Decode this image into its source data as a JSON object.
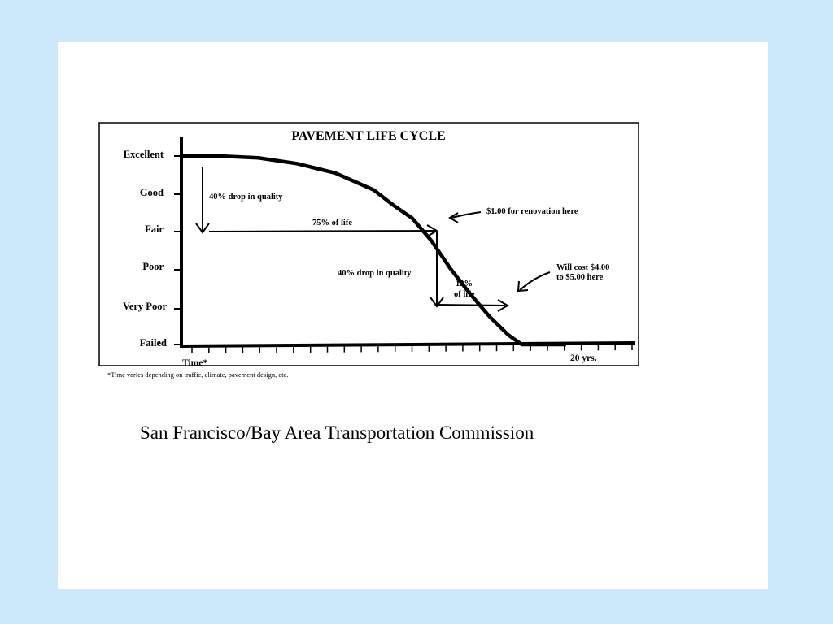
{
  "slide": {
    "background": "#cce9fc",
    "panel_color": "#ffffff",
    "caption": "San Francisco/Bay Area Transportation Commission"
  },
  "chart_data": {
    "type": "line",
    "title": "PAVEMENT LIFE CYCLE",
    "xlabel": "Time*",
    "x_end_label": "20 yrs.",
    "footnote": "*Time varies depending on traffic, climate, pavement design, etc.",
    "xlim": [
      0,
      20
    ],
    "y_categories": [
      "Failed",
      "Very Poor",
      "Poor",
      "Fair",
      "Good",
      "Excellent"
    ],
    "ylim": [
      0,
      5
    ],
    "x_ticks_count": 27,
    "series": [
      {
        "x": [
          0,
          2,
          4,
          6,
          8,
          10,
          11,
          12,
          13,
          14,
          15,
          16,
          17,
          17.7,
          18,
          19,
          20
        ],
        "y": [
          5,
          5,
          4.95,
          4.8,
          4.55,
          4.1,
          3.7,
          3.35,
          2.75,
          2.0,
          1.35,
          0.75,
          0.25,
          0,
          0,
          0,
          0
        ]
      }
    ],
    "annotations": [
      {
        "id": "drop1",
        "text": "40% drop in quality"
      },
      {
        "id": "life75",
        "text": "75% of life"
      },
      {
        "id": "reno",
        "text": "$1.00 for renovation here"
      },
      {
        "id": "drop2",
        "text": "40% drop in quality"
      },
      {
        "id": "life12a",
        "text": "12%"
      },
      {
        "id": "life12b",
        "text": "of life"
      },
      {
        "id": "cost1",
        "text": "Will cost $4.00"
      },
      {
        "id": "cost2",
        "text": "to $5.00 here"
      }
    ]
  }
}
